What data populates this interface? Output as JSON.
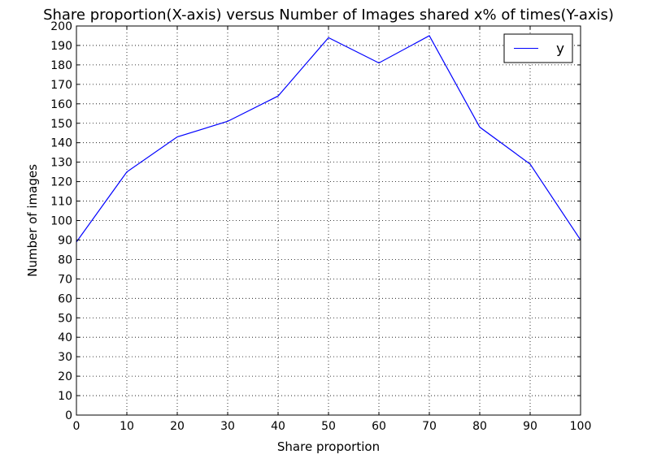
{
  "chart_data": {
    "type": "line",
    "title": "Share proportion(X-axis) versus Number of Images shared x% of times(Y-axis)",
    "xlabel": "Share proportion",
    "ylabel": "Number of images",
    "xlim": [
      0,
      100
    ],
    "ylim": [
      0,
      200
    ],
    "x_ticks": [
      0,
      10,
      20,
      30,
      40,
      50,
      60,
      70,
      80,
      90,
      100
    ],
    "y_ticks": [
      0,
      10,
      20,
      30,
      40,
      50,
      60,
      70,
      80,
      90,
      100,
      110,
      120,
      130,
      140,
      150,
      160,
      170,
      180,
      190,
      200
    ],
    "grid": true,
    "legend_position": "top-right",
    "series": [
      {
        "name": "y",
        "color": "#0000ff",
        "x": [
          0,
          10,
          20,
          30,
          40,
          50,
          60,
          70,
          80,
          90,
          100
        ],
        "values": [
          89,
          125,
          143,
          151,
          164,
          194,
          181,
          195,
          148,
          129,
          90
        ]
      }
    ]
  }
}
